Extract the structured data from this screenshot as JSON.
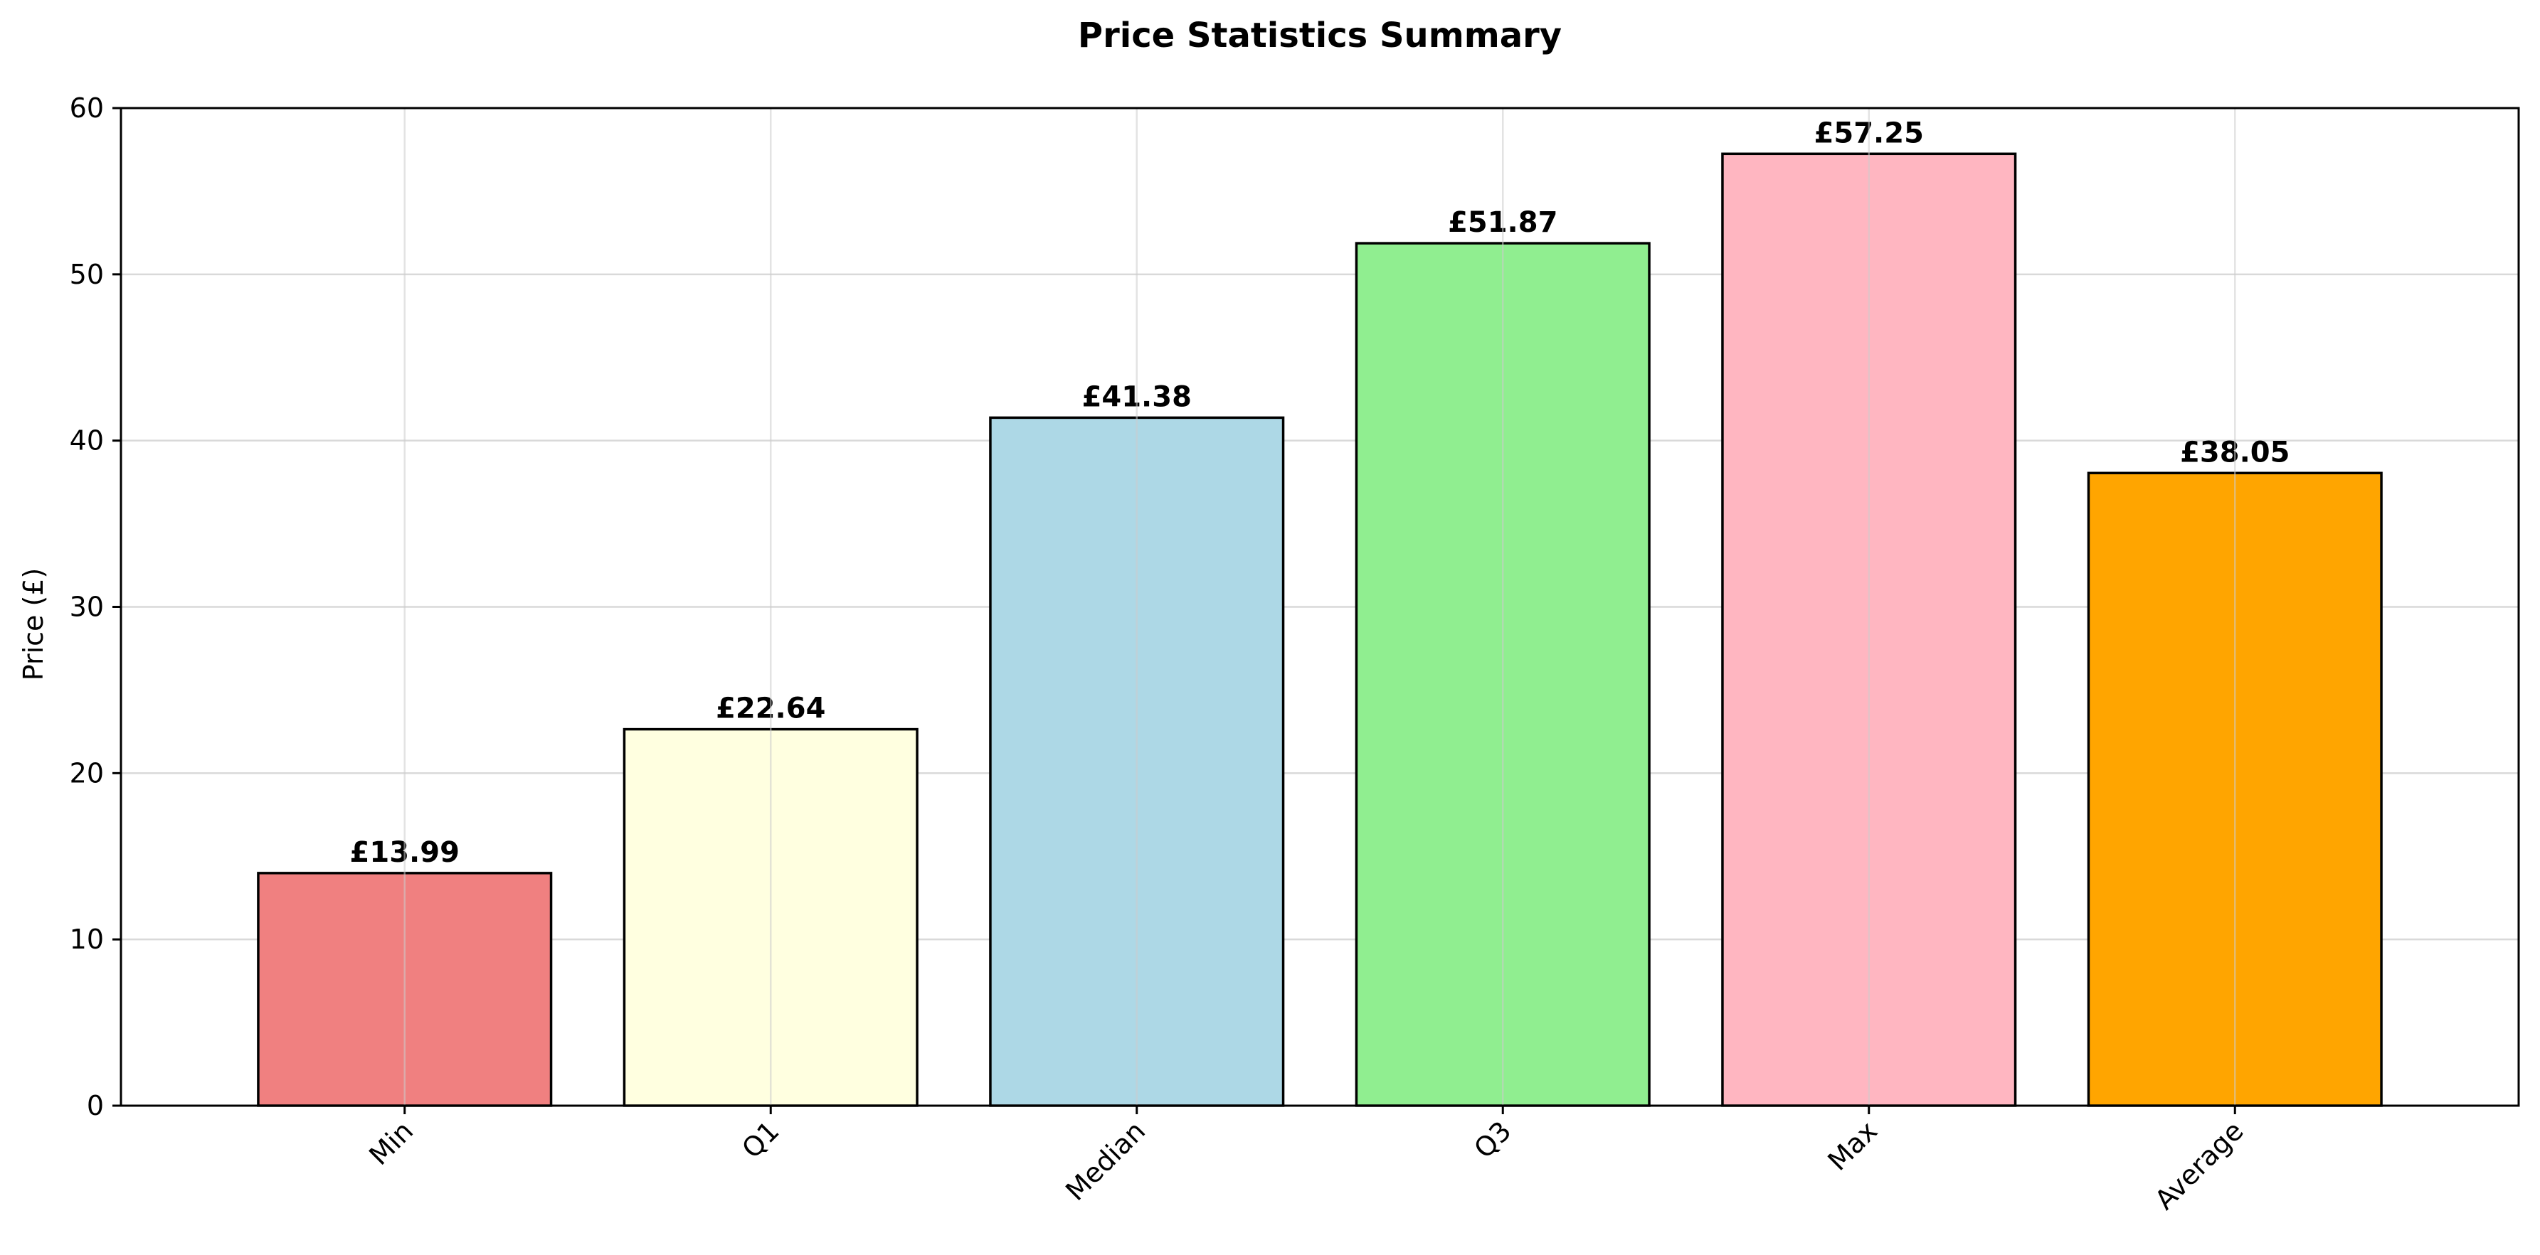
{
  "chart_data": {
    "type": "bar",
    "title": "Price Statistics Summary",
    "xlabel": "",
    "ylabel": "Price (£)",
    "categories": [
      "Min",
      "Q1",
      "Median",
      "Q3",
      "Max",
      "Average"
    ],
    "values": [
      13.99,
      22.64,
      41.38,
      51.87,
      57.25,
      38.05
    ],
    "data_labels": [
      "£13.99",
      "£22.64",
      "£41.38",
      "£51.87",
      "£57.25",
      "£38.05"
    ],
    "colors": [
      "#f08080",
      "#ffffe0",
      "#add8e6",
      "#90ee90",
      "#ffb6c1",
      "#ffa500"
    ],
    "edge_color": "#000000",
    "ylim": [
      0,
      60
    ],
    "yticks": [
      0,
      10,
      20,
      30,
      40,
      50,
      60
    ],
    "ytick_labels": [
      "0",
      "10",
      "20",
      "30",
      "40",
      "50",
      "60"
    ],
    "grid": true,
    "legend": "none"
  }
}
